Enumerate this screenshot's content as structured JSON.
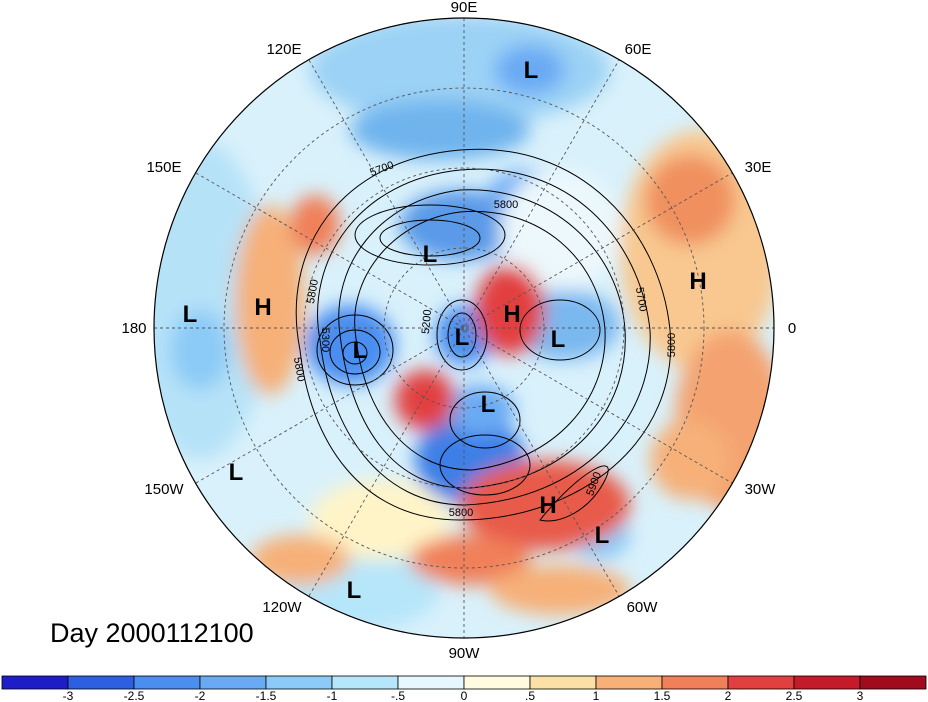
{
  "title": "Day 2000112100",
  "longitude_labels": [
    {
      "text": "90E"
    },
    {
      "text": "60E"
    },
    {
      "text": "30E"
    },
    {
      "text": "0"
    },
    {
      "text": "30W"
    },
    {
      "text": "60W"
    },
    {
      "text": "90W"
    },
    {
      "text": "120W"
    },
    {
      "text": "150W"
    },
    {
      "text": "180"
    },
    {
      "text": "150E"
    },
    {
      "text": "120E"
    }
  ],
  "pressure_centers": [
    {
      "type": "L"
    },
    {
      "type": "L"
    },
    {
      "type": "L"
    },
    {
      "type": "L"
    },
    {
      "type": "L"
    },
    {
      "type": "L"
    },
    {
      "type": "L"
    },
    {
      "type": "L"
    },
    {
      "type": "L"
    },
    {
      "type": "L"
    },
    {
      "type": "H"
    },
    {
      "type": "H"
    },
    {
      "type": "H"
    },
    {
      "type": "H"
    }
  ],
  "contour_labels": [
    "5700",
    "5800",
    "5800",
    "5200",
    "5300",
    "5800",
    "5700",
    "5800",
    "5800",
    "5900"
  ],
  "colorbar": {
    "ticks": [
      "-3",
      "-2.5",
      "-2",
      "-1.5",
      "-1",
      "-.5",
      "0",
      ".5",
      "1",
      "1.5",
      "2",
      "2.5",
      "3"
    ],
    "colors": [
      "#1e1ec8",
      "#2d5fe0",
      "#4a8ef0",
      "#6aaaf4",
      "#8ccaf7",
      "#b6e6fa",
      "#e6f7fd",
      "#fffbe0",
      "#fbe1a6",
      "#f6b078",
      "#f0805a",
      "#e24040",
      "#c41a2a",
      "#a00b1e"
    ]
  }
}
